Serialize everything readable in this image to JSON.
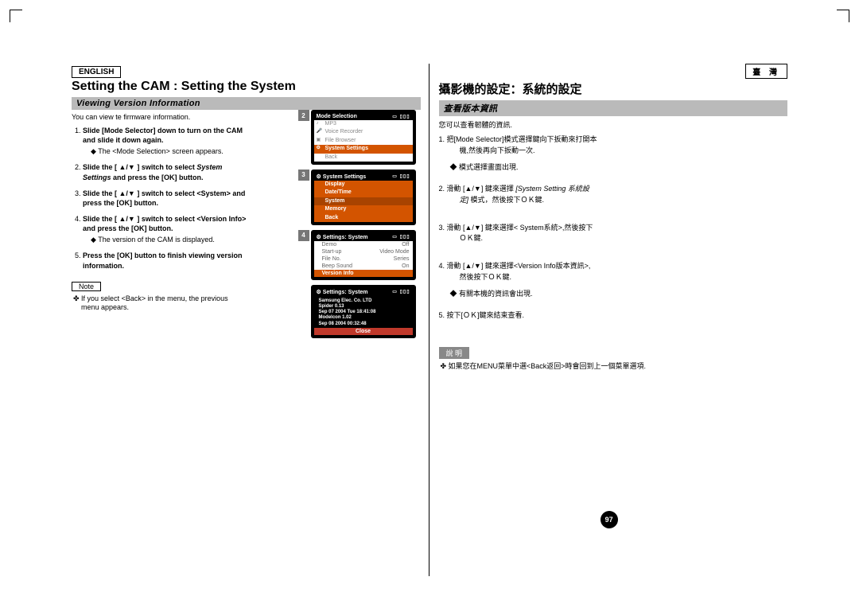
{
  "left": {
    "lang": "ENGLISH",
    "title": "Setting the CAM : Setting the System",
    "section": "Viewing Version Information",
    "intro": "You can view te firmware information.",
    "steps": [
      {
        "n": "1.",
        "bold": "Slide [Mode Selector] down to turn on the CAM and slide it down again.",
        "sub": "◆  The <Mode Selection> screen appears."
      },
      {
        "n": "2.",
        "bold": "Slide the [ ▲/▼ ] switch to select ",
        "italic": "System Settings",
        "bold2": " and press the [OK] button.",
        "sub": ""
      },
      {
        "n": "3.",
        "bold": "Slide the [ ▲/▼ ] switch to select <System> and press the [OK] button.",
        "sub": ""
      },
      {
        "n": "4.",
        "bold": "Slide the [ ▲/▼ ] switch to select <Version Info> and press the [OK] button.",
        "sub": "◆  The version of the CAM is displayed."
      },
      {
        "n": "5.",
        "bold": "Press the [OK] button to finish viewing version information.",
        "sub": ""
      }
    ],
    "note_label": "Note",
    "note_text": "✤  If you select <Back> in the menu, the previous menu appears."
  },
  "right": {
    "lang": "臺 灣",
    "title": "攝影機的設定：系統的設定",
    "section": "查看版本資訊",
    "intro": "您可以查看韌體的資訊.",
    "steps": [
      "1.  把[Mode Selector]模式選擇鍵向下扳動來打開本機,然後再向下扳動一次.\n◆  模式選擇畫面出現.",
      "2.  滑動 [▲/▼] 鍵來選擇 [System Setting 系統設定] 模式，然後按下ＯＫ鍵.",
      "3.  滑動 [▲/▼] 鍵來選擇< System系統>,然後按下ＯＫ鍵.",
      "4.  滑動 [▲/▼] 鍵來選擇<Version Info版本資訊>,然後按下ＯＫ鍵.\n◆  有關本機的資訊會出現.",
      "5.  按下[ＯＫ]鍵來結束查看."
    ],
    "note_label": "說 明",
    "note_text": "✤  如果您在MENU菜單中選<Back返回>時會回到上一個菜單選項."
  },
  "screens": {
    "s2": {
      "title": "Mode Selection",
      "items": [
        "MP3",
        "Voice Recorder",
        "File Browser"
      ],
      "sel": "System Settings",
      "back": "Back"
    },
    "s3": {
      "title": "System Settings",
      "items": [
        "Display",
        "Date/Time",
        "System",
        "Memory",
        "Back"
      ],
      "sel_idx": 2
    },
    "s4": {
      "title": "Settings: System",
      "rows": [
        [
          "Demo",
          "Off"
        ],
        [
          "Start-up",
          "Video Mode"
        ],
        [
          "File No.",
          "Series"
        ],
        [
          "Beep Sound",
          "On"
        ]
      ],
      "sel": "Version Info"
    },
    "info": {
      "title": "Settings: System",
      "lines": [
        "Samsung Elec. Co. LTD",
        "Spider 0.13",
        "Sep 07 2004 Tue 18:41:08",
        "Modelcon 1.02",
        "Sep 08 2004 00:32:48"
      ],
      "close": "Close"
    }
  },
  "page_num": "97"
}
